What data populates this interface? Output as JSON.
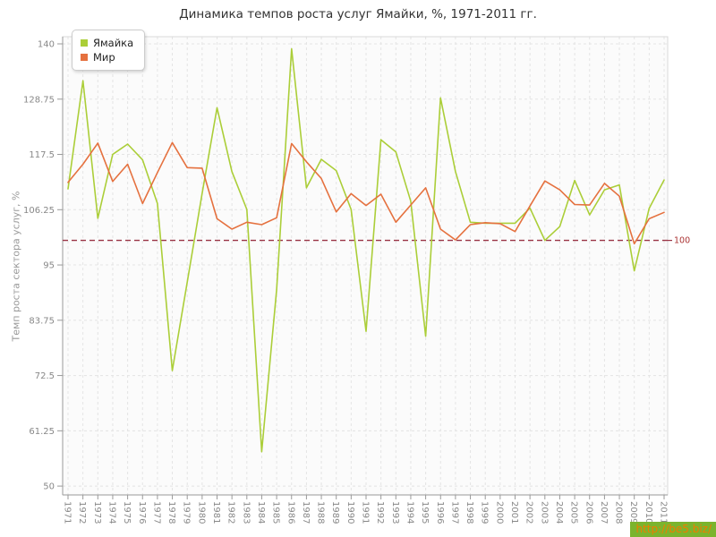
{
  "title": "Динамика темпов роста услуг Ямайки, %, 1971-2011 гг.",
  "watermark": "http://be5.biz/",
  "colors": {
    "jamaica_line": "#abce38",
    "world_line": "#e5713f",
    "refline": "#993344",
    "refline_label": "#aa3333",
    "grid": "#e4e4e4",
    "axis": "#999999",
    "tick_label": "#888888",
    "plot_bg": "#fbfbfb",
    "watermark_bg": "#7bb42e",
    "watermark_text": "#ef7d00"
  },
  "chart_data": {
    "type": "line",
    "title": "Динамика темпов роста услуг Ямайки, %, 1971-2011 гг.",
    "xlabel": "",
    "ylabel": "Темп роста сектора услуг, %",
    "ylim": [
      50,
      140
    ],
    "yticks": [
      140,
      128.75,
      117.5,
      106.25,
      95,
      83.75,
      72.5,
      61.25,
      50
    ],
    "grid": true,
    "legend_position": "top-left",
    "refline": {
      "value": 100,
      "label": "100"
    },
    "x": [
      1971,
      1972,
      1973,
      1974,
      1975,
      1976,
      1977,
      1978,
      1979,
      1980,
      1981,
      1982,
      1983,
      1984,
      1985,
      1986,
      1987,
      1988,
      1989,
      1990,
      1991,
      1992,
      1993,
      1994,
      1995,
      1996,
      1997,
      1998,
      1999,
      2000,
      2001,
      2002,
      2003,
      2004,
      2005,
      2006,
      2007,
      2008,
      2009,
      2010,
      2011
    ],
    "series": [
      {
        "name": "Ямайка",
        "color": "#abce38",
        "values": [
          110.5,
          132.5,
          104.5,
          117.5,
          119.6,
          116.4,
          107.5,
          73.5,
          91.5,
          109.5,
          127,
          114,
          106.3,
          57,
          90,
          139,
          110.7,
          116.5,
          114.2,
          106.3,
          81.5,
          120.5,
          118,
          108,
          80.5,
          129,
          114,
          103.7,
          103.5,
          103.5,
          103.5,
          106.6,
          100,
          102.8,
          112.2,
          105.2,
          110.3,
          111.3,
          93.8,
          106.5,
          112.3
        ]
      },
      {
        "name": "Мир",
        "color": "#e5713f",
        "values": [
          111.8,
          115.5,
          119.8,
          112,
          115.5,
          107.5,
          113.8,
          119.9,
          114.8,
          114.7,
          104.4,
          102.3,
          103.7,
          103.2,
          104.6,
          119.7,
          116,
          112.6,
          105.8,
          109.5,
          107.1,
          109.4,
          103.7,
          107.2,
          110.7,
          102.3,
          100.1,
          103.2,
          103.6,
          103.4,
          101.8,
          107,
          112.1,
          110.3,
          107.3,
          107.2,
          111.6,
          109,
          99.3,
          104.4,
          105.7
        ]
      }
    ]
  }
}
